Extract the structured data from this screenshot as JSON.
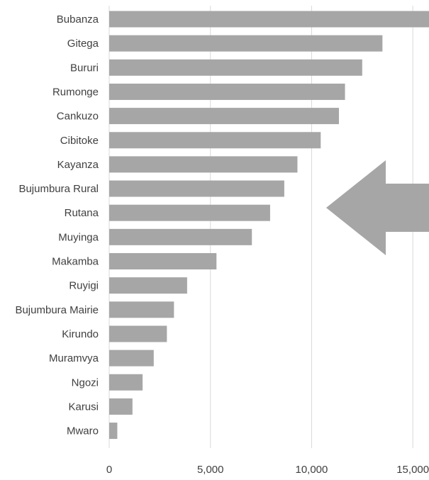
{
  "chart_data": {
    "type": "bar",
    "orientation": "horizontal",
    "categories": [
      "Bubanza",
      "Gitega",
      "Bururi",
      "Rumonge",
      "Cankuzo",
      "Cibitoke",
      "Kayanza",
      "Bujumbura Rural",
      "Rutana",
      "Muyinga",
      "Makamba",
      "Ruyigi",
      "Bujumbura Mairie",
      "Kirundo",
      "Muramvya",
      "Ngozi",
      "Karusi",
      "Mwaro"
    ],
    "values": [
      16100,
      13500,
      12500,
      11650,
      11350,
      10450,
      9300,
      8650,
      7950,
      7050,
      5300,
      3850,
      3200,
      2850,
      2200,
      1650,
      1150,
      400
    ],
    "xlim": [
      0,
      15800
    ],
    "xticks": [
      0,
      5000,
      10000,
      15000
    ],
    "xtick_labels": [
      "0",
      "5,000",
      "10,000",
      "15,000"
    ],
    "grid": "vertical",
    "title": "",
    "xlabel": "",
    "ylabel": "",
    "bar_color": "#a6a6a6",
    "annotation": {
      "shape": "left-pointing-arrow",
      "color": "#a6a6a6"
    }
  }
}
